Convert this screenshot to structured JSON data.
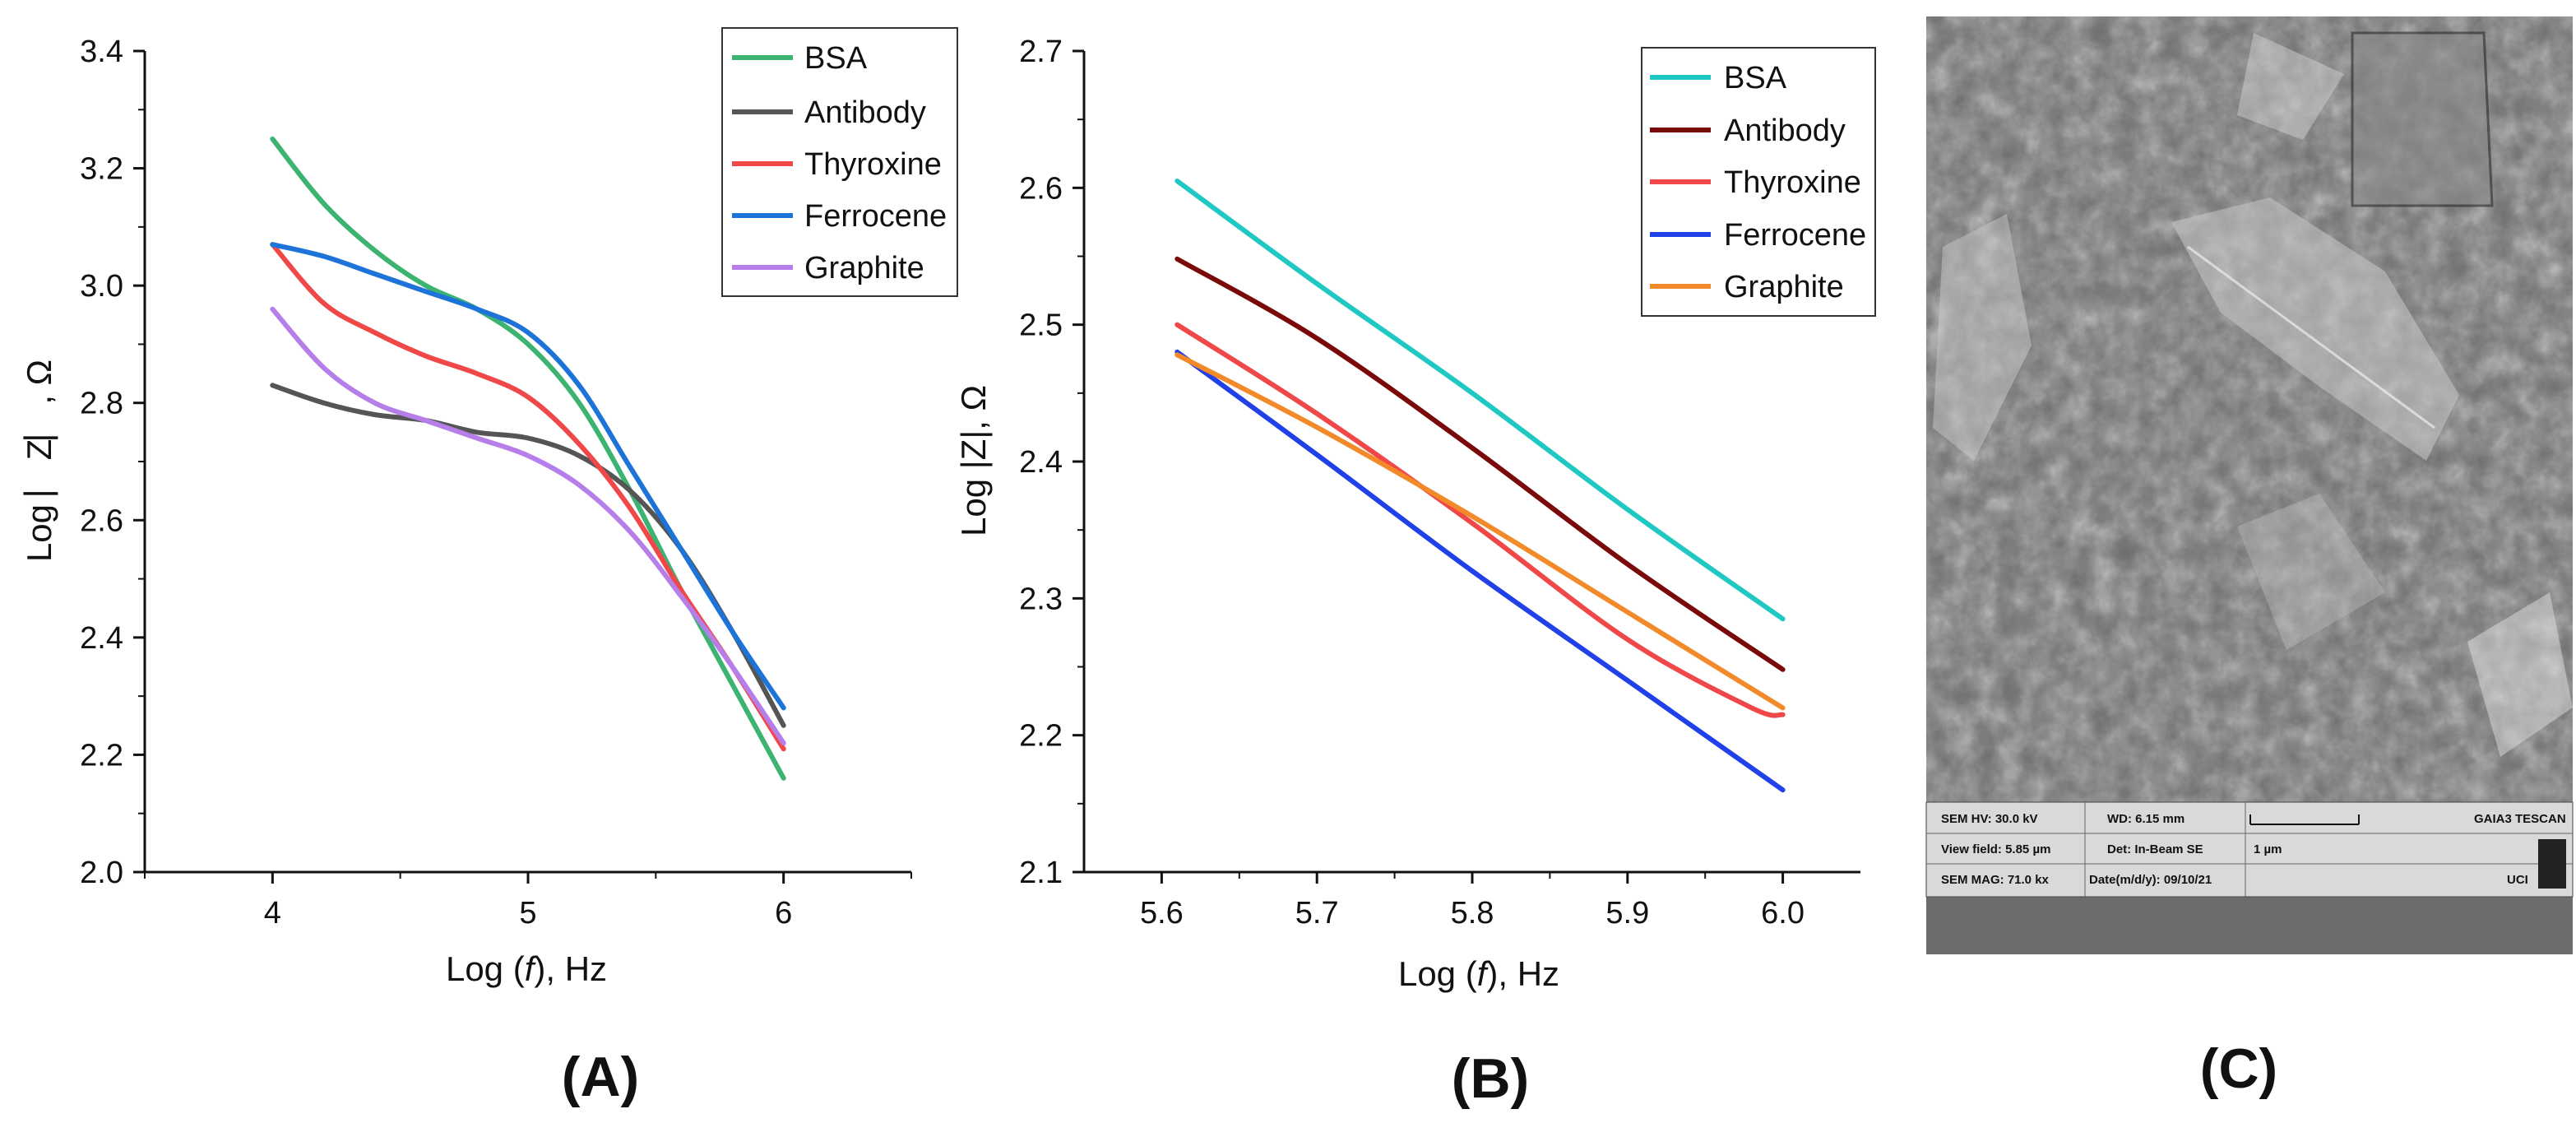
{
  "chart_data": [
    {
      "id": "A",
      "type": "line",
      "panel_label": "(A)",
      "xlabel": {
        "pre": "Log (",
        "italic": "f",
        "post": "), Hz"
      },
      "ylabel": "Log  ⎸Z⎸, Ω",
      "xlim": [
        3.5,
        6.5
      ],
      "ylim": [
        2.0,
        3.4
      ],
      "xticks": [
        4,
        5,
        6
      ],
      "xtick_labels": [
        "4",
        "5",
        "6"
      ],
      "yticks": [
        2.0,
        2.2,
        2.4,
        2.6,
        2.8,
        3.0,
        3.2,
        3.4
      ],
      "ytick_labels": [
        "2.0",
        "2.2",
        "2.4",
        "2.6",
        "2.8",
        "3.0",
        "3.2",
        "3.4"
      ],
      "legend_position": "top-right",
      "series": [
        {
          "name": "BSA",
          "color": "#3cb371",
          "x": [
            4.0,
            4.2,
            4.4,
            4.6,
            4.8,
            5.0,
            5.2,
            5.4,
            5.6,
            5.8,
            6.0
          ],
          "y": [
            3.25,
            3.14,
            3.06,
            3.0,
            2.96,
            2.9,
            2.8,
            2.65,
            2.48,
            2.32,
            2.16
          ]
        },
        {
          "name": "Antibody",
          "color": "#555555",
          "x": [
            4.0,
            4.2,
            4.4,
            4.6,
            4.8,
            5.0,
            5.2,
            5.4,
            5.6,
            5.8,
            6.0
          ],
          "y": [
            2.83,
            2.8,
            2.78,
            2.77,
            2.75,
            2.74,
            2.71,
            2.65,
            2.55,
            2.41,
            2.25
          ]
        },
        {
          "name": "Thyroxine",
          "color": "#f04848",
          "x": [
            4.0,
            4.2,
            4.4,
            4.6,
            4.8,
            5.0,
            5.2,
            5.4,
            5.6,
            5.8,
            6.0
          ],
          "y": [
            3.07,
            2.97,
            2.92,
            2.88,
            2.85,
            2.81,
            2.73,
            2.62,
            2.48,
            2.35,
            2.21
          ]
        },
        {
          "name": "Ferrocene",
          "color": "#1e73d8",
          "x": [
            4.0,
            4.2,
            4.4,
            4.6,
            4.8,
            5.0,
            5.2,
            5.4,
            5.6,
            5.8,
            6.0
          ],
          "y": [
            3.07,
            3.05,
            3.02,
            2.99,
            2.96,
            2.92,
            2.83,
            2.69,
            2.55,
            2.41,
            2.28
          ]
        },
        {
          "name": "Graphite",
          "color": "#b57ee8",
          "x": [
            4.0,
            4.2,
            4.4,
            4.6,
            4.8,
            5.0,
            5.2,
            5.4,
            5.6,
            5.8,
            6.0
          ],
          "y": [
            2.96,
            2.86,
            2.8,
            2.77,
            2.74,
            2.71,
            2.66,
            2.58,
            2.47,
            2.35,
            2.22
          ]
        }
      ]
    },
    {
      "id": "B",
      "type": "line",
      "panel_label": "(B)",
      "xlabel": {
        "pre": "Log (",
        "italic": "f",
        "post": "), Hz"
      },
      "ylabel": "Log |Z|, Ω",
      "xlim": [
        5.55,
        6.05
      ],
      "ylim": [
        2.1,
        2.7
      ],
      "xticks": [
        5.6,
        5.7,
        5.8,
        5.9,
        6.0
      ],
      "xtick_labels": [
        "5.6",
        "5.7",
        "5.8",
        "5.9",
        "6.0"
      ],
      "yticks": [
        2.1,
        2.2,
        2.3,
        2.4,
        2.5,
        2.6,
        2.7
      ],
      "ytick_labels": [
        "2.1",
        "2.2",
        "2.3",
        "2.4",
        "2.5",
        "2.6",
        "2.7"
      ],
      "legend_position": "top-right",
      "series": [
        {
          "name": "BSA",
          "color": "#20c8c4",
          "x": [
            5.61,
            5.7,
            5.8,
            5.9,
            6.0
          ],
          "y": [
            2.605,
            2.53,
            2.45,
            2.365,
            2.285
          ]
        },
        {
          "name": "Antibody",
          "color": "#7a0a0a",
          "x": [
            5.61,
            5.7,
            5.8,
            5.9,
            6.0
          ],
          "y": [
            2.548,
            2.49,
            2.41,
            2.325,
            2.248
          ]
        },
        {
          "name": "Thyroxine",
          "color": "#f04848",
          "x": [
            5.61,
            5.7,
            5.8,
            5.9,
            5.98,
            6.0
          ],
          "y": [
            2.5,
            2.435,
            2.355,
            2.27,
            2.22,
            2.215
          ]
        },
        {
          "name": "Ferrocene",
          "color": "#2040e8",
          "x": [
            5.61,
            5.7,
            5.8,
            5.9,
            6.0
          ],
          "y": [
            2.48,
            2.405,
            2.32,
            2.24,
            2.16
          ]
        },
        {
          "name": "Graphite",
          "color": "#f28a2a",
          "x": [
            5.61,
            5.7,
            5.8,
            5.9,
            6.0
          ],
          "y": [
            2.478,
            2.425,
            2.36,
            2.29,
            2.22
          ]
        }
      ]
    }
  ],
  "sem_panel": {
    "panel_label": "(C)",
    "info": {
      "hv": "SEM HV: 30.0 kV",
      "wd": "WD: 6.15 mm",
      "brand": "GAIA3 TESCAN",
      "view_field": "View field: 5.85 µm",
      "det": "Det: In-Beam SE",
      "scale": "1 µm",
      "mag": "SEM MAG: 71.0 kx",
      "date": "Date(m/d/y): 09/10/21",
      "org": "UCI"
    }
  }
}
